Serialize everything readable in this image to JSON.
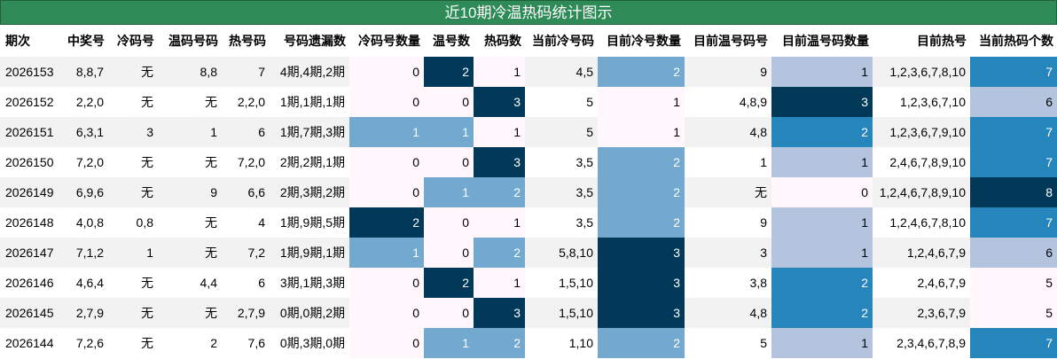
{
  "title": "近10期冷温热码统计图示",
  "table": {
    "header": [
      "期次",
      "中奖号",
      "冷码号",
      "温码号码",
      "热号码",
      "号码遗漏数",
      "冷码号数量",
      "温号数",
      "热码数",
      "当前冷号码",
      "目前冷号数量",
      "目前温号码号",
      "目前温号码数量",
      "目前热号",
      "当前热码个数"
    ],
    "rows": [
      [
        "2026153",
        "8,8,7",
        "无",
        "8,8",
        "7",
        "4期,4期,2期",
        0,
        2,
        1,
        "4,5",
        2,
        "9",
        1,
        "1,2,3,6,7,8,10",
        7
      ],
      [
        "2026152",
        "2,2,0",
        "无",
        "无",
        "2,2,0",
        "1期,1期,1期",
        0,
        0,
        3,
        "5",
        1,
        "4,8,9",
        3,
        "1,2,3,6,7,10",
        6
      ],
      [
        "2026151",
        "6,3,1",
        "3",
        "1",
        "6",
        "1期,7期,3期",
        1,
        1,
        1,
        "5",
        1,
        "4,8",
        2,
        "1,2,3,6,7,9,10",
        7
      ],
      [
        "2026150",
        "7,2,0",
        "无",
        "无",
        "7,2,0",
        "2期,2期,1期",
        0,
        0,
        3,
        "3,5",
        2,
        "1",
        1,
        "2,4,6,7,8,9,10",
        7
      ],
      [
        "2026149",
        "6,9,6",
        "无",
        "9",
        "6,6",
        "2期,3期,2期",
        0,
        1,
        2,
        "3,5",
        2,
        "无",
        0,
        "1,2,4,6,7,8,9,10",
        8
      ],
      [
        "2026148",
        "4,0,8",
        "0,8",
        "无",
        "4",
        "1期,9期,5期",
        2,
        0,
        1,
        "3,5",
        2,
        "9",
        1,
        "1,2,4,6,7,8,10",
        7
      ],
      [
        "2026147",
        "7,1,2",
        "1",
        "无",
        "7,2",
        "1期,9期,1期",
        1,
        0,
        2,
        "5,8,10",
        3,
        "3",
        1,
        "1,2,4,6,7,9",
        6
      ],
      [
        "2026146",
        "4,6,4",
        "无",
        "4,4",
        "6",
        "3期,1期,3期",
        0,
        2,
        1,
        "1,5,10",
        3,
        "3,8",
        2,
        "2,4,6,7,9",
        5
      ],
      [
        "2026145",
        "2,7,9",
        "无",
        "无",
        "2,7,9",
        "0期,0期,2期",
        0,
        0,
        3,
        "1,5,10",
        3,
        "4,8",
        2,
        "2,3,6,7,9",
        5
      ],
      [
        "2026144",
        "7,2,6",
        "无",
        "2",
        "7,6",
        "0期,3期,0期",
        0,
        1,
        2,
        "1,10",
        2,
        "5",
        1,
        "2,3,4,6,7,8,9",
        7
      ]
    ]
  },
  "heatmap": {
    "columns": [
      6,
      7,
      8,
      10,
      12,
      14
    ],
    "colors": [
      "#fff7fb",
      "#ece7f2",
      "#d0d1e6",
      "#a6bddb",
      "#74a9cf",
      "#3690c0",
      "#0570b0",
      "#045a8d",
      "#023858"
    ]
  }
}
